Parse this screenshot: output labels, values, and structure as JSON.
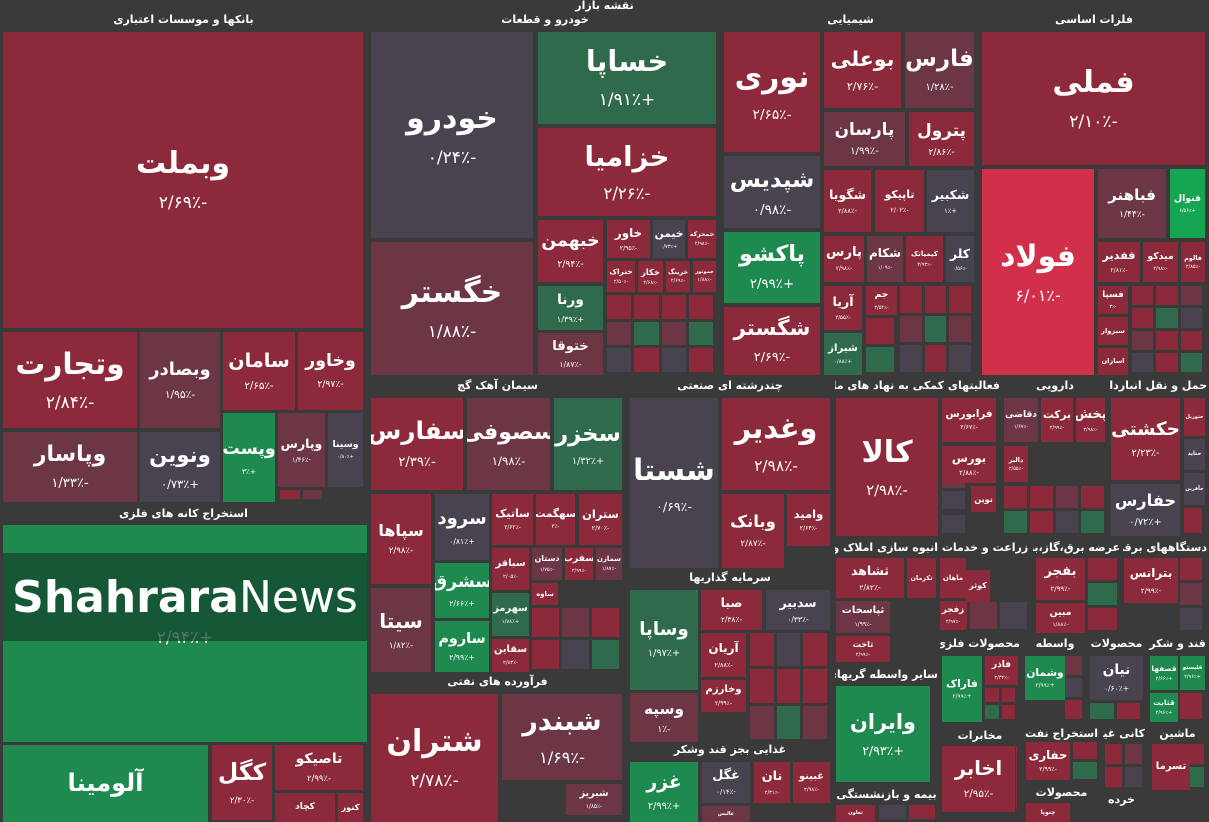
{
  "title": "نقشه بازار",
  "watermark": {
    "bold": "Shahrara",
    "light": "News"
  },
  "sectors": [
    {
      "title": "بانکها و موسسات اعتباری",
      "tiles": [
        {
          "name": "وبملت",
          "change": "-۲/۶۹٪"
        },
        {
          "name": "وتجارت",
          "change": "-۲/۸۴٪"
        },
        {
          "name": "وبصادر",
          "change": "-۱/۹۵٪"
        },
        {
          "name": "سامان",
          "change": "-۲/۶۵٪"
        },
        {
          "name": "وخاور",
          "change": "-۲/۹۷٪"
        },
        {
          "name": "وپاسار",
          "change": "-۱/۳۳٪"
        },
        {
          "name": "ونوین",
          "change": "+۰/۷۳٪"
        },
        {
          "name": "وپست",
          "change": "+۳٪"
        },
        {
          "name": "وپارس",
          "change": "-۱/۴۶٪"
        },
        {
          "name": "وسینا",
          "change": "+۰/۸۰٪"
        }
      ]
    },
    {
      "title": "استخراج کانه های فلزی",
      "tiles": [
        {
          "change": "+۲/۹۴٪"
        },
        {
          "name": "آلومینا"
        },
        {
          "name": "کگل",
          "change": "-۲/۳۰٪"
        },
        {
          "name": "تاصیکو",
          "change": "-۲/۹۹٪"
        },
        {
          "name": "کچاد"
        },
        {
          "name": "کنور"
        }
      ]
    },
    {
      "title": "خودرو و قطعات",
      "tiles": [
        {
          "name": "خودرو",
          "change": "-۰/۲۴٪"
        },
        {
          "name": "خگستر",
          "change": "-۱/۸۸٪"
        },
        {
          "name": "خساپا",
          "change": "+۱/۹۱٪"
        },
        {
          "name": "خزامیا",
          "change": "-۲/۲۶٪"
        },
        {
          "name": "خبهمن",
          "change": "-۲/۹۴٪"
        },
        {
          "name": "خاور",
          "change": "-۲/۹۵٪"
        },
        {
          "name": "خیمن",
          "change": "+۰/۷۳٪"
        },
        {
          "name": "خمحرکه",
          "change": "-۲/۹۸٪"
        },
        {
          "name": "ختراک",
          "change": "-۲/۵۰٪"
        },
        {
          "name": "خکار",
          "change": "-۲/۶۸٪"
        },
        {
          "name": "خرینگ",
          "change": "-۲/۶۹٪"
        },
        {
          "name": "خموتور",
          "change": "-۱/۸۸٪"
        },
        {
          "name": "ورنا",
          "change": "+۱/۳۹٪"
        },
        {
          "name": "ختوقا",
          "change": "-۱/۸۷٪"
        }
      ]
    },
    {
      "title": "شیمیایی",
      "tiles": [
        {
          "name": "نوری",
          "change": "-۲/۶۵٪"
        },
        {
          "name": "شپدیس",
          "change": "-۰/۹۸٪"
        },
        {
          "name": "پاکشو",
          "change": "+۲/۹۹٪"
        },
        {
          "name": "شگستر",
          "change": "-۲/۶۹٪"
        },
        {
          "name": "بوعلی",
          "change": "-۲/۷۶٪"
        },
        {
          "name": "فارس",
          "change": "-۱/۲۸٪"
        },
        {
          "name": "پارسان",
          "change": "-۱/۹۹٪"
        },
        {
          "name": "پترول",
          "change": "-۲/۸۶٪"
        },
        {
          "name": "شگویا",
          "change": "-۲/۸۸٪"
        },
        {
          "name": "تاپیکو",
          "change": "-۲/۰۲٪"
        },
        {
          "name": "شکبیر",
          "change": "+۱٪"
        },
        {
          "name": "پارس",
          "change": "-۲/۹۸٪"
        },
        {
          "name": "شکام",
          "change": "-۱/۰۹٪"
        },
        {
          "name": "کیمیاتک",
          "change": "-۲/۹۳٪"
        },
        {
          "name": "کلر",
          "change": "-۰/۵۶٪"
        },
        {
          "name": "آریا",
          "change": "-۲/۵۵٪"
        },
        {
          "name": "جم",
          "change": "-۲/۵۴٪"
        },
        {
          "name": "شیراز",
          "change": "+۰/۸۸٪"
        }
      ]
    },
    {
      "title": "فلزات اساسی",
      "tiles": [
        {
          "name": "فملی",
          "change": "-۲/۱۰٪"
        },
        {
          "name": "فولاد",
          "change": "-۶/۰۱٪"
        },
        {
          "name": "فباهنر",
          "change": "-۱/۴۴٪"
        },
        {
          "name": "فنوال",
          "change": "+۶/۵۶٪"
        },
        {
          "name": "ففدیر",
          "change": "-۲/۸۱٪"
        },
        {
          "name": "میدکو",
          "change": "-۲/۹۸٪"
        },
        {
          "name": "فالوم",
          "change": "-۲/۸۵٪"
        },
        {
          "name": "فسپا",
          "change": "-۳٪"
        },
        {
          "name": "سبزوار"
        },
        {
          "name": "اسازان"
        }
      ]
    },
    {
      "title": "سیمان آهک گچ",
      "tiles": [
        {
          "name": "سفارس",
          "change": "-۲/۳۹٪"
        },
        {
          "name": "سصوفی",
          "change": "-۱/۹۸٪"
        },
        {
          "name": "سخزر",
          "change": "+۱/۳۲٪"
        },
        {
          "name": "سپاها",
          "change": "-۲/۹۸٪"
        },
        {
          "name": "سیتا",
          "change": "-۱/۸۲٪"
        },
        {
          "name": "سرود",
          "change": "+۰/۸۱٪"
        },
        {
          "name": "سشرق",
          "change": "+۲/۶۶٪"
        },
        {
          "name": "ساروم",
          "change": "+۲/۹۹٪"
        },
        {
          "name": "ساتیک",
          "change": "-۲/۶۲٪"
        },
        {
          "name": "سهگمت",
          "change": "-۳٪"
        },
        {
          "name": "ستران",
          "change": "-۲/۷۰٪"
        },
        {
          "name": "سباقر",
          "change": "-۲/۰۵٪"
        },
        {
          "name": "سهرمز",
          "change": "+۱/۷۸٪"
        },
        {
          "name": "سقاین",
          "change": "-۲/۸۳٪"
        },
        {
          "name": "دستان",
          "change": "-۱/۷۵٪"
        },
        {
          "name": "سفرب",
          "change": "-۲/۹۹٪"
        },
        {
          "name": "سمازن",
          "change": "-۱/۸۷٪"
        },
        {
          "name": "ساوه"
        }
      ]
    },
    {
      "title": "چندرشته ای صنعتی",
      "tiles": [
        {
          "name": "شستا",
          "change": "-۰/۶۹٪"
        },
        {
          "name": "وغدیر",
          "change": "-۲/۹۸٪"
        },
        {
          "name": "وبانک",
          "change": "-۲/۸۷٪"
        },
        {
          "name": "وامید",
          "change": "-۲/۶۴٪"
        }
      ]
    },
    {
      "title": "سرمایه گذاریها",
      "tiles": [
        {
          "name": "وساپا",
          "change": "+۱/۹۷٪"
        },
        {
          "name": "صبا",
          "change": "-۲/۳۸٪"
        },
        {
          "name": "سدبیر",
          "change": "-۰/۳۳٪"
        },
        {
          "name": "آریان",
          "change": "-۲/۸۸٪"
        },
        {
          "name": "وخارزم",
          "change": "-۲/۹۹٪"
        },
        {
          "name": "وسپه",
          "change": "-۱٪"
        }
      ]
    },
    {
      "title": "فرآورده های نفتی",
      "tiles": [
        {
          "name": "شتران",
          "change": "-۲/۷۸٪"
        },
        {
          "name": "شبندر",
          "change": "-۱/۶۹٪"
        },
        {
          "name": "شبریز",
          "change": "-۱/۸۵٪"
        }
      ]
    },
    {
      "title": "غذایی بجز قند وشکر",
      "tiles": [
        {
          "name": "غزر",
          "change": "+۲/۹۹٪"
        },
        {
          "name": "غگل",
          "change": "-۰/۱۴٪"
        },
        {
          "name": "نان",
          "change": "-۲/۳۱٪"
        },
        {
          "name": "غبینو",
          "change": "-۲/۹۸٪"
        },
        {
          "name": "عالیس"
        }
      ]
    },
    {
      "title": "فعالیتهای کمکی به نهاد های مالی",
      "tiles": [
        {
          "name": "کالا",
          "change": "-۲/۹۸٪"
        },
        {
          "name": "فرابورس",
          "change": "-۲/۶۷٪"
        },
        {
          "name": "بورس",
          "change": "-۲/۸۸٪"
        },
        {
          "name": "نوین"
        }
      ]
    },
    {
      "title": "دارویی",
      "tiles": [
        {
          "name": "دقاضی",
          "change": "-۱/۶۷٪"
        },
        {
          "name": "برکت",
          "change": "-۲/۹۹٪"
        },
        {
          "name": "پخش",
          "change": "-۲/۹۸٪"
        },
        {
          "name": "دالبر",
          "change": "-۲/۵۵٪"
        }
      ]
    },
    {
      "title": "حمل و نقل انبارداری",
      "tiles": [
        {
          "name": "حکشتی",
          "change": "-۲/۲۳٪"
        },
        {
          "name": "حفارس",
          "change": "+۰/۷۲٪"
        },
        {
          "name": "حتوریل"
        },
        {
          "name": "حتاید"
        },
        {
          "name": "حآفرین"
        }
      ]
    },
    {
      "title": "انبوه سازی املاک و",
      "tiles": [
        {
          "name": "ثشاهد",
          "change": "-۲/۸۲٪"
        },
        {
          "name": "ثکرمان"
        },
        {
          "name": "ثپاسخات",
          "change": "-۱/۹۹٪"
        },
        {
          "name": "ثاخت",
          "change": "-۲/۹۹٪"
        }
      ]
    },
    {
      "title": "زراعت و خدمات",
      "tiles": [
        {
          "name": "ماهان"
        },
        {
          "name": "کوثر"
        },
        {
          "name": "زفجر",
          "change": "-۲/۹۷٪"
        }
      ]
    },
    {
      "title": "عرضه برق،گاز،بخار",
      "tiles": [
        {
          "name": "بفجر",
          "change": "-۲/۹۹٪"
        },
        {
          "name": "مبین",
          "change": "-۱/۸۸٪"
        }
      ]
    },
    {
      "title": "دستگاههای برقی",
      "tiles": [
        {
          "name": "بترانس",
          "change": "-۲/۹۹٪"
        }
      ]
    },
    {
      "title": "سایر واسطه گریهای",
      "tiles": [
        {
          "name": "وایران",
          "change": "+۲/۹۳٪"
        }
      ]
    },
    {
      "title": "محصولات فلزی",
      "tiles": [
        {
          "name": "فاراک",
          "change": "+۲/۹۹٪"
        },
        {
          "name": "فاذر",
          "change": "-۲/۳۲٪"
        }
      ]
    },
    {
      "title": "واسطه",
      "tiles": [
        {
          "name": "وشمان",
          "change": "+۲/۹۹٪"
        }
      ]
    },
    {
      "title": "محصولات",
      "tiles": [
        {
          "name": "نیان",
          "change": "+۰/۶۰٪"
        }
      ]
    },
    {
      "title": "قند و شکر",
      "tiles": [
        {
          "name": "قصفها",
          "change": "+۲/۶۶٪"
        },
        {
          "name": "قلیستو",
          "change": "+۲/۹۶٪"
        },
        {
          "name": "قثابت",
          "change": "+۲/۹۶٪"
        }
      ]
    },
    {
      "title": "مخابرات",
      "tiles": [
        {
          "name": "اخابر",
          "change": "-۲/۹۵٪"
        }
      ]
    },
    {
      "title": "استخراج نفت",
      "tiles": [
        {
          "name": "حفاری",
          "change": "-۲/۹۹٪"
        }
      ]
    },
    {
      "title": "کانی غیر",
      "tiles": []
    },
    {
      "title": "ماشین",
      "tiles": [
        {
          "name": "تسرما"
        }
      ]
    },
    {
      "title": "بیمه و بازنشستگی",
      "tiles": [
        {
          "name": "تعاون"
        }
      ]
    },
    {
      "title": "محصولات",
      "tiles": [
        {
          "name": "چنوپا"
        }
      ]
    },
    {
      "title": "خرده",
      "tiles": []
    }
  ]
}
